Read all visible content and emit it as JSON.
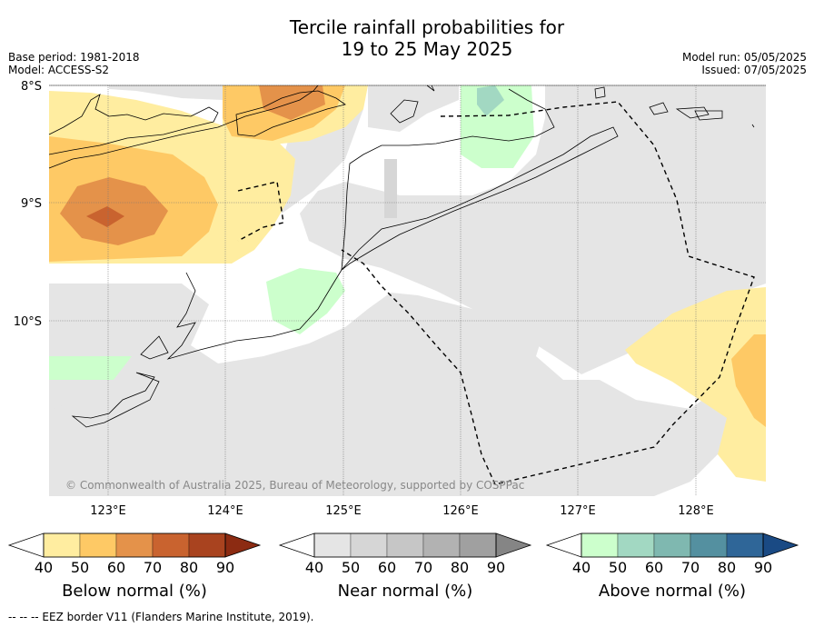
{
  "title_line1": "Tercile rainfall probabilities for",
  "title_line2": "19 to 25 May 2025",
  "base_period": "Base period: 1981-2018",
  "model": "Model: ACCESS-S2",
  "model_run": "Model run: 05/05/2025",
  "issued": "Issued: 07/05/2025",
  "copyright": "© Commonwealth of Australia 2025, Bureau of Meteorology, supported by COSPPac",
  "lat_labels": [
    "8°S",
    "9°S",
    "10°S"
  ],
  "lon_labels": [
    "123°E",
    "124°E",
    "125°E",
    "126°E",
    "127°E",
    "128°E"
  ],
  "colorbars": [
    {
      "label": "Below normal (%)",
      "ticks": [
        "40",
        "50",
        "60",
        "70",
        "80",
        "90"
      ],
      "colors": [
        "#ffffff",
        "#ffeda0",
        "#fec965",
        "#e4924a",
        "#c9632f",
        "#a9431f",
        "#8c2b12"
      ]
    },
    {
      "label": "Near normal (%)",
      "ticks": [
        "40",
        "50",
        "60",
        "70",
        "80",
        "90"
      ],
      "colors": [
        "#ffffff",
        "#e5e5e5",
        "#d6d6d6",
        "#c6c6c6",
        "#b2b2b2",
        "#a0a0a0",
        "#858585"
      ]
    },
    {
      "label": "Above normal (%)",
      "ticks": [
        "40",
        "50",
        "60",
        "70",
        "80",
        "90"
      ],
      "colors": [
        "#ffffff",
        "#ccffcc",
        "#a2d8c2",
        "#7fb8b0",
        "#5490a0",
        "#2f6698",
        "#1a4a84"
      ]
    }
  ],
  "footer": "--  --  -- EEZ border V11 (Flanders Marine Institute, 2019)."
}
